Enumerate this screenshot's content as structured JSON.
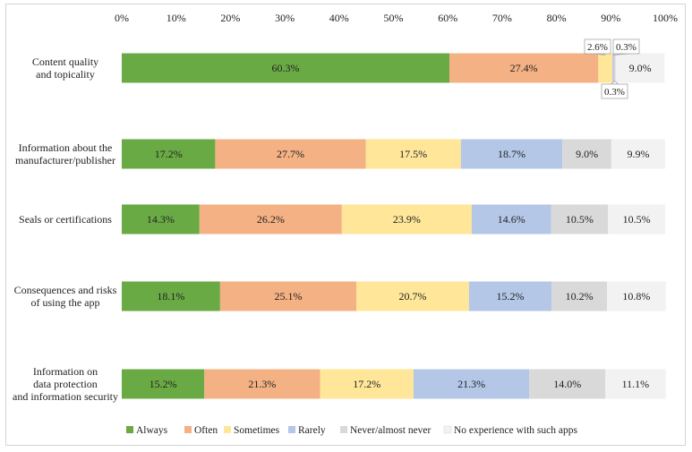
{
  "chart_data": {
    "type": "bar",
    "orientation": "horizontal",
    "stacked": true,
    "title": "",
    "xlabel": "",
    "ylabel": "",
    "xlim": [
      0,
      100
    ],
    "x_ticks": [
      "0%",
      "10%",
      "20%",
      "30%",
      "40%",
      "50%",
      "60%",
      "70%",
      "80%",
      "90%",
      "100%"
    ],
    "grid": false,
    "legend_position": "bottom",
    "categories": [
      [
        "Content quality",
        "and topicality"
      ],
      [
        "Information about the",
        "manufacturer/publisher"
      ],
      [
        "Seals or certifications"
      ],
      [
        "Consequences and risks",
        "of using the app"
      ],
      [
        "Information on",
        "data protection",
        "and information security"
      ]
    ],
    "series": [
      {
        "name": "Always",
        "color": "#6aaa44",
        "values": [
          60.3,
          17.2,
          14.3,
          18.1,
          15.2
        ],
        "labels": [
          "60.3%",
          "17.2%",
          "14.3%",
          "18.1%",
          "15.2%"
        ]
      },
      {
        "name": "Often",
        "color": "#f4b183",
        "values": [
          27.4,
          27.7,
          26.2,
          25.1,
          21.3
        ],
        "labels": [
          "27.4%",
          "27.7%",
          "26.2%",
          "25.1%",
          "21.3%"
        ]
      },
      {
        "name": "Sometimes",
        "color": "#ffe699",
        "values": [
          2.6,
          17.5,
          23.9,
          20.7,
          17.2
        ],
        "labels": [
          "2.6%",
          "17.5%",
          "23.9%",
          "20.7%",
          "17.2%"
        ]
      },
      {
        "name": "Rarely",
        "color": "#b4c7e7",
        "values": [
          0.3,
          18.7,
          14.6,
          15.2,
          21.3
        ],
        "labels": [
          "0.3%",
          "18.7%",
          "14.6%",
          "15.2%",
          "21.3%"
        ]
      },
      {
        "name": "Never/almost never",
        "color": "#d9d9d9",
        "values": [
          0.3,
          9.0,
          10.5,
          10.2,
          14.0
        ],
        "labels": [
          "0.3%",
          "9.0%",
          "10.5%",
          "10.2%",
          "14.0%"
        ]
      },
      {
        "name": "No experience with such apps",
        "color": "#f2f2f2",
        "values": [
          9.0,
          9.9,
          10.5,
          10.8,
          11.1
        ],
        "labels": [
          "9.0%",
          "9.9%",
          "10.5%",
          "10.8%",
          "11.1%"
        ]
      }
    ]
  }
}
